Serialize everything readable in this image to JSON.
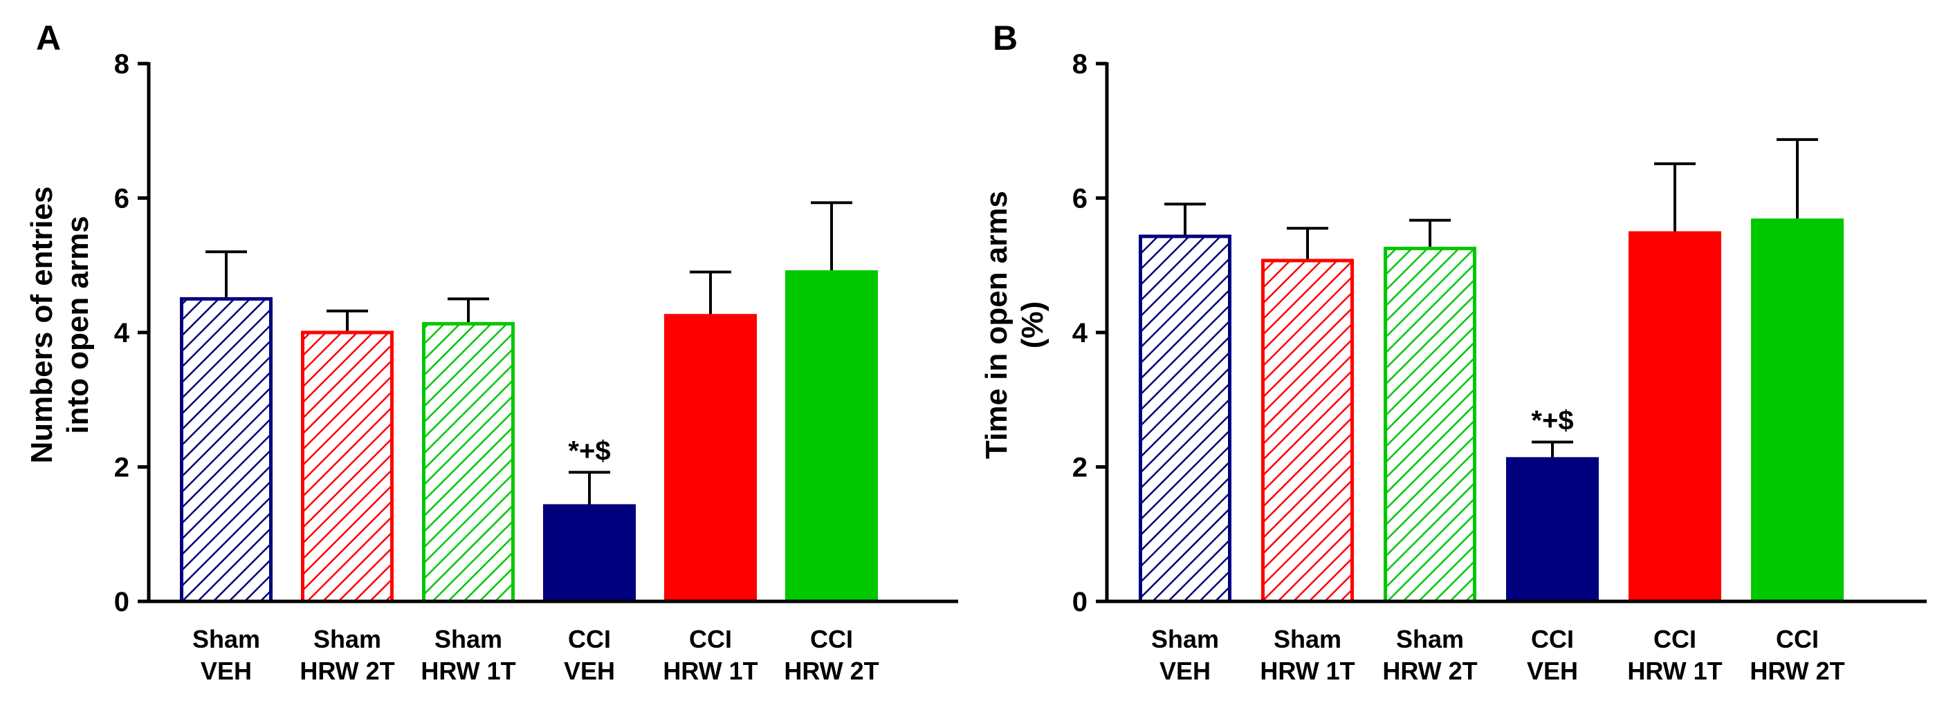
{
  "colors": {
    "blue": "#00007f",
    "red": "#ff0000",
    "green": "#00c800",
    "axis": "#000000"
  },
  "chart_data": [
    {
      "panel_label": "A",
      "type": "bar",
      "ylabel_lines": [
        "Numbers of entries",
        "into open arms"
      ],
      "ylim": [
        0,
        8
      ],
      "yticks": [
        0,
        2,
        4,
        6,
        8
      ],
      "grid": false,
      "bars": [
        {
          "label_lines": [
            "Sham",
            "VEH"
          ],
          "value": 4.5,
          "error": 0.7,
          "color": "blue",
          "fill": "hatched",
          "annotation": ""
        },
        {
          "label_lines": [
            "Sham",
            "HRW 2T"
          ],
          "value": 4.0,
          "error": 0.32,
          "color": "red",
          "fill": "hatched",
          "annotation": ""
        },
        {
          "label_lines": [
            "Sham",
            "HRW 1T"
          ],
          "value": 4.13,
          "error": 0.37,
          "color": "green",
          "fill": "hatched",
          "annotation": ""
        },
        {
          "label_lines": [
            "CCI",
            "VEH"
          ],
          "value": 1.42,
          "error": 0.5,
          "color": "blue",
          "fill": "solid",
          "annotation": "*+$"
        },
        {
          "label_lines": [
            "CCI",
            "HRW 1T"
          ],
          "value": 4.25,
          "error": 0.65,
          "color": "red",
          "fill": "solid",
          "annotation": ""
        },
        {
          "label_lines": [
            "CCI",
            "HRW 2T"
          ],
          "value": 4.9,
          "error": 1.03,
          "color": "green",
          "fill": "solid",
          "annotation": ""
        }
      ]
    },
    {
      "panel_label": "B",
      "type": "bar",
      "ylabel_lines": [
        "Time in open arms",
        "(%)"
      ],
      "ylim": [
        0,
        8
      ],
      "yticks": [
        0,
        2,
        4,
        6,
        8
      ],
      "grid": false,
      "bars": [
        {
          "label_lines": [
            "Sham",
            "VEH"
          ],
          "value": 5.43,
          "error": 0.48,
          "color": "blue",
          "fill": "hatched",
          "annotation": ""
        },
        {
          "label_lines": [
            "Sham",
            "HRW 1T"
          ],
          "value": 5.07,
          "error": 0.48,
          "color": "red",
          "fill": "hatched",
          "annotation": ""
        },
        {
          "label_lines": [
            "Sham",
            "HRW 2T"
          ],
          "value": 5.25,
          "error": 0.42,
          "color": "green",
          "fill": "hatched",
          "annotation": ""
        },
        {
          "label_lines": [
            "CCI",
            "VEH"
          ],
          "value": 2.12,
          "error": 0.25,
          "color": "blue",
          "fill": "solid",
          "annotation": "*+$"
        },
        {
          "label_lines": [
            "CCI",
            "HRW 1T"
          ],
          "value": 5.48,
          "error": 1.03,
          "color": "red",
          "fill": "solid",
          "annotation": ""
        },
        {
          "label_lines": [
            "CCI",
            "HRW 2T"
          ],
          "value": 5.67,
          "error": 1.2,
          "color": "green",
          "fill": "solid",
          "annotation": ""
        }
      ]
    }
  ]
}
